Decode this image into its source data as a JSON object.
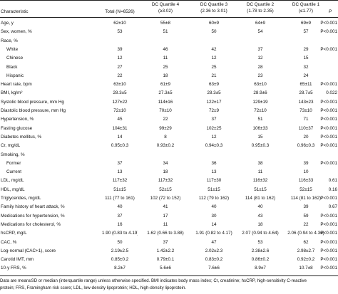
{
  "header": {
    "characteristic": "Characteristic",
    "total": "Total (N=6526)",
    "q4_name": "DC Quartile 4",
    "q4_range": "(≥3.02)",
    "q3_name": "DC Quartile 3",
    "q3_range": "(2.36 to 3.01)",
    "q2_name": "DC Quartile 2",
    "q2_range": "(1.78 to 2.35)",
    "q1_name": "DC Quartile 1",
    "q1_range": "(≤1.77)",
    "p": "P"
  },
  "rows": [
    {
      "label": "Age, y",
      "indent": false,
      "total": "62±10",
      "q4": "55±8",
      "q3": "60±9",
      "q2": "64±9",
      "q1": "69±9",
      "p": "P<0.001"
    },
    {
      "label": "Sex, women, %",
      "indent": false,
      "total": "53",
      "q4": "51",
      "q3": "50",
      "q2": "54",
      "q1": "57",
      "p": "P<0.001"
    },
    {
      "label": "Race, %",
      "indent": false,
      "total": "",
      "q4": "",
      "q3": "",
      "q2": "",
      "q1": "",
      "p": ""
    },
    {
      "label": "White",
      "indent": true,
      "total": "39",
      "q4": "46",
      "q3": "42",
      "q2": "37",
      "q1": "29",
      "p": "P<0.001"
    },
    {
      "label": "Chinese",
      "indent": true,
      "total": "12",
      "q4": "11",
      "q3": "12",
      "q2": "12",
      "q1": "15",
      "p": ""
    },
    {
      "label": "Black",
      "indent": true,
      "total": "27",
      "q4": "25",
      "q3": "25",
      "q2": "28",
      "q1": "32",
      "p": ""
    },
    {
      "label": "Hispanic",
      "indent": true,
      "total": "22",
      "q4": "18",
      "q3": "21",
      "q2": "23",
      "q1": "24",
      "p": ""
    },
    {
      "label": "Heart rate, bpm",
      "indent": false,
      "total": "63±10",
      "q4": "61±9",
      "q3": "63±9",
      "q2": "63±10",
      "q1": "65±11",
      "p": "P<0.001"
    },
    {
      "label": "BMI, kg/m²",
      "indent": false,
      "total": "28.3±5",
      "q4": "27.3±5",
      "q3": "28.3±5",
      "q2": "28.9±6",
      "q1": "28.7±5",
      "p": "0.022"
    },
    {
      "label": "Systolic blood pressure, mm Hg",
      "indent": false,
      "total": "127±22",
      "q4": "114±16",
      "q3": "122±17",
      "q2": "129±19",
      "q1": "143±23",
      "p": "P<0.001"
    },
    {
      "label": "Diastolic blood pressure, mm Hg",
      "indent": false,
      "total": "72±10",
      "q4": "70±10",
      "q3": "72±9",
      "q2": "72±10",
      "q1": "73±10",
      "p": "P<0.001"
    },
    {
      "label": "Hypertension, %",
      "indent": false,
      "total": "45",
      "q4": "22",
      "q3": "37",
      "q2": "51",
      "q1": "71",
      "p": "P<0.001"
    },
    {
      "label": "Fasting glucose",
      "indent": false,
      "total": "104±31",
      "q4": "99±29",
      "q3": "102±25",
      "q2": "106±33",
      "q1": "110±37",
      "p": "P<0.001"
    },
    {
      "label": "Diabetes mellitus, %",
      "indent": false,
      "total": "14",
      "q4": "8",
      "q3": "12",
      "q2": "15",
      "q1": "20",
      "p": "P<0.001"
    },
    {
      "label": "Cr, mg/dL",
      "indent": false,
      "total": "0.95±0.3",
      "q4": "0.93±0.2",
      "q3": "0.94±0.3",
      "q2": "0.95±0.3",
      "q1": "0.96±0.3",
      "p": "P<0.001"
    },
    {
      "label": "Smoking, %",
      "indent": false,
      "total": "",
      "q4": "",
      "q3": "",
      "q2": "",
      "q1": "",
      "p": ""
    },
    {
      "label": "Former",
      "indent": true,
      "total": "37",
      "q4": "34",
      "q3": "36",
      "q2": "38",
      "q1": "39",
      "p": "P<0.001"
    },
    {
      "label": "Current",
      "indent": true,
      "total": "13",
      "q4": "18",
      "q3": "13",
      "q2": "11",
      "q1": "10",
      "p": ""
    },
    {
      "label": "LDL, mg/dL",
      "indent": false,
      "total": "117±32",
      "q4": "117±32",
      "q3": "117±30",
      "q2": "116±32",
      "q1": "116±33",
      "p": "0.61"
    },
    {
      "label": "HDL, mg/dL",
      "indent": false,
      "total": "51±15",
      "q4": "52±15",
      "q3": "51±15",
      "q2": "51±15",
      "q1": "52±15",
      "p": "0.16"
    },
    {
      "label": "Triglycerides, mg/dL",
      "indent": false,
      "total": "111 (77 to 161)",
      "q4": "102 (72 to 152)",
      "q3": "112 (79 to 162)",
      "q2": "114 (81 to 162)",
      "q1": "114 (81 to 162)",
      "p": "P<0.001"
    },
    {
      "label": "Family history of heart attack, %",
      "indent": false,
      "total": "40",
      "q4": "41",
      "q3": "40",
      "q2": "40",
      "q1": "39",
      "p": "0.67"
    },
    {
      "label": "Medications for hypertension, %",
      "indent": false,
      "total": "37",
      "q4": "17",
      "q3": "30",
      "q2": "43",
      "q1": "59",
      "p": "P<0.001"
    },
    {
      "label": "Medications for cholesterol, %",
      "indent": false,
      "total": "16",
      "q4": "11",
      "q3": "14",
      "q2": "18",
      "q1": "22",
      "p": "P<0.001"
    },
    {
      "label": "hsCRP, mg/L",
      "indent": false,
      "total": "1.90 (0.83 to 4.19)",
      "q4": "1.62 (0.66 to 3.88)",
      "q3": "1.91 (0.82 to 4.17)",
      "q2": "2.07 (0.94 to 4.64)",
      "q1": "2.06 (0.94 to 4.36)",
      "p": "P<0.001"
    },
    {
      "label": "CAC, %",
      "indent": false,
      "total": "50",
      "q4": "37",
      "q3": "47",
      "q2": "53",
      "q1": "62",
      "p": "P<0.001"
    },
    {
      "label": "Log-normal (CAC+1), score",
      "indent": false,
      "total": "2.19±2.5",
      "q4": "1.42±2.2",
      "q3": "2.02±2.3",
      "q2": "2.38±2.6",
      "q1": "2.98±2.7",
      "p": "P<0.001"
    },
    {
      "label": "Carotid IMT, mm",
      "indent": false,
      "total": "0.85±0.2",
      "q4": "0.79±0.1",
      "q3": "0.83±0.2",
      "q2": "0.86±0.2",
      "q1": "0.92±0.2",
      "p": "P<0.001"
    },
    {
      "label": "10-y FRS, %",
      "indent": false,
      "total": "8.2±7",
      "q4": "5.6±6",
      "q3": "7.6±6",
      "q2": "8.9±7",
      "q1": "10.7±8",
      "p": "P<0.001"
    }
  ],
  "footnote": {
    "line1": "Data are mean±SD or median (interquartile range) unless otherwise specified. BMI indicates body mass index; Cr, creatinine; hsCRP, high-sensitivity C-reactive",
    "line2": "protein; FRS, Framingham risk score; LDL, low-density lipoprotein; HDL, high-density lipoprotein."
  }
}
